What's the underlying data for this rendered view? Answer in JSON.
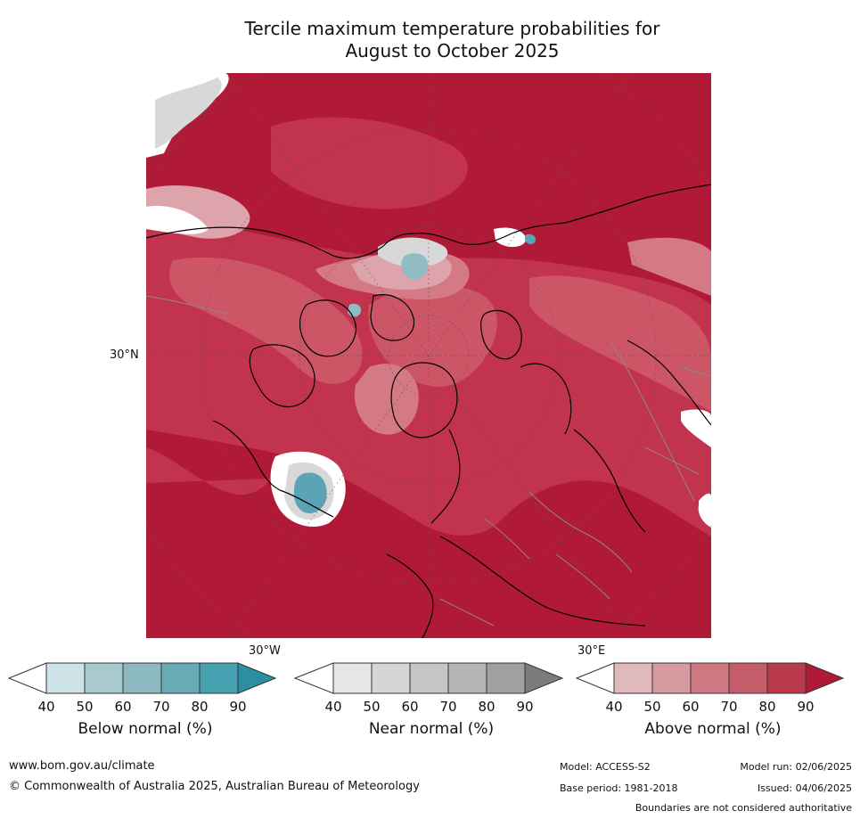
{
  "title_line1": "Tercile maximum temperature probabilities for",
  "title_line2": "August to October 2025",
  "map": {
    "lat_label": "30°N",
    "lon_label_left": "30°W",
    "lon_label_right": "30°E",
    "colors": {
      "above_90": "#b11a37",
      "above_80": "#c2334e",
      "above_70": "#cc5566",
      "above_60": "#d47a85",
      "above_50": "#dda5ab",
      "below_60": "#8fbcc5",
      "below_80": "#5ba4b5",
      "near": "#d8d8d8",
      "white": "#ffffff",
      "coast": "#000000",
      "border": "#8a8a8a"
    }
  },
  "legends": [
    {
      "caption": "Below normal (%)",
      "ticks": [
        "40",
        "50",
        "60",
        "70",
        "80",
        "90"
      ],
      "colors": [
        "#ffffff",
        "#cde3e8",
        "#a8c9cf",
        "#8cb8c0",
        "#6aabb8",
        "#45a0b0",
        "#2b8ea2"
      ]
    },
    {
      "caption": "Near normal (%)",
      "ticks": [
        "40",
        "50",
        "60",
        "70",
        "80",
        "90"
      ],
      "colors": [
        "#ffffff",
        "#e6e6e6",
        "#d6d6d6",
        "#c6c6c6",
        "#b4b4b4",
        "#a0a0a0",
        "#7c7c7c"
      ]
    },
    {
      "caption": "Above normal (%)",
      "ticks": [
        "40",
        "50",
        "60",
        "70",
        "80",
        "90"
      ],
      "colors": [
        "#ffffff",
        "#e0b9bd",
        "#d89aa1",
        "#cf7882",
        "#c55c6a",
        "#ba3a4d",
        "#b11a37"
      ]
    }
  ],
  "footer": {
    "website": "www.bom.gov.au/climate",
    "copyright": "© Commonwealth of Australia 2025, Australian Bureau of Meteorology",
    "model": "Model: ACCESS-S2",
    "model_run": "Model run: 02/06/2025",
    "base_period": "Base period: 1981-2018",
    "issued": "Issued: 04/06/2025",
    "disclaimer": "Boundaries are not considered authoritative"
  }
}
